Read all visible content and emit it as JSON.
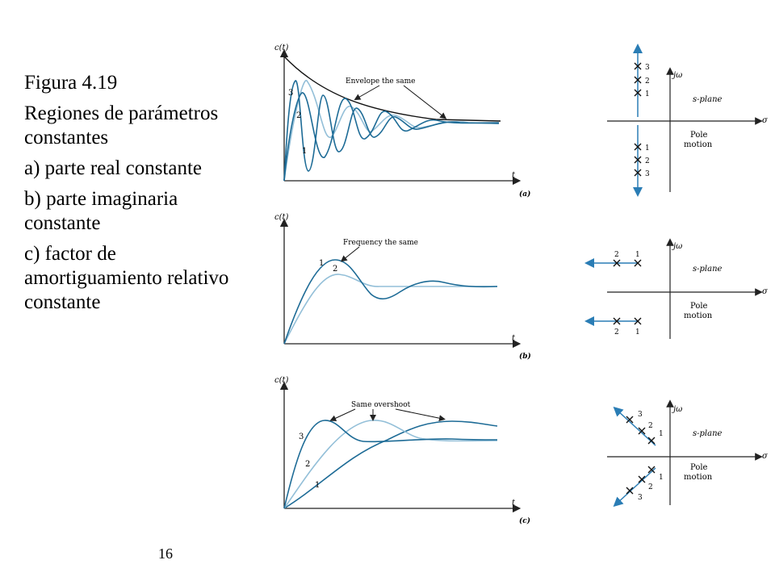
{
  "caption": {
    "figure": "Figura 4.19",
    "title": "Regiones de parámetros constantes",
    "item_a": "a) parte real constante",
    "item_b": "b) parte imaginaria constante",
    "item_c": "c) factor de amortiguamiento relativo constante"
  },
  "page_number": "16",
  "colors": {
    "curve_dark": "#1d6b96",
    "curve_light": "#93bfd8",
    "axis": "#222222",
    "arrow": "#2a7db5"
  },
  "panels": {
    "a": {
      "label": "(a)",
      "plot_ylabel": "c(t)",
      "plot_xlabel": "t",
      "annotation": "Envelope the same",
      "curve_labels": [
        "1",
        "2",
        "3"
      ],
      "splane": {
        "jw_label": "jω",
        "plane_label": "s-plane",
        "sigma_label": "σ",
        "pole_motion_1": "Pole",
        "pole_motion_2": "motion",
        "pole_labels_upper": [
          "3",
          "2",
          "1"
        ],
        "pole_labels_lower": [
          "1",
          "2",
          "3"
        ]
      }
    },
    "b": {
      "label": "(b)",
      "plot_ylabel": "c(t)",
      "plot_xlabel": "t",
      "annotation": "Frequency the same",
      "curve_labels": [
        "1",
        "2"
      ],
      "splane": {
        "jw_label": "jω",
        "plane_label": "s-plane",
        "sigma_label": "σ",
        "pole_motion_1": "Pole",
        "pole_motion_2": "motion",
        "pole_labels_upper": [
          "2",
          "1"
        ],
        "pole_labels_lower": [
          "2",
          "1"
        ]
      }
    },
    "c": {
      "label": "(c)",
      "plot_ylabel": "c(t)",
      "plot_xlabel": "t",
      "annotation": "Same overshoot",
      "curve_labels": [
        "1",
        "2",
        "3"
      ],
      "splane": {
        "jw_label": "jω",
        "plane_label": "s-plane",
        "sigma_label": "σ",
        "pole_motion_1": "Pole",
        "pole_motion_2": "motion",
        "pole_labels_upper": [
          "3",
          "2",
          "1"
        ],
        "pole_labels_lower": [
          "1",
          "2",
          "3"
        ]
      }
    }
  }
}
